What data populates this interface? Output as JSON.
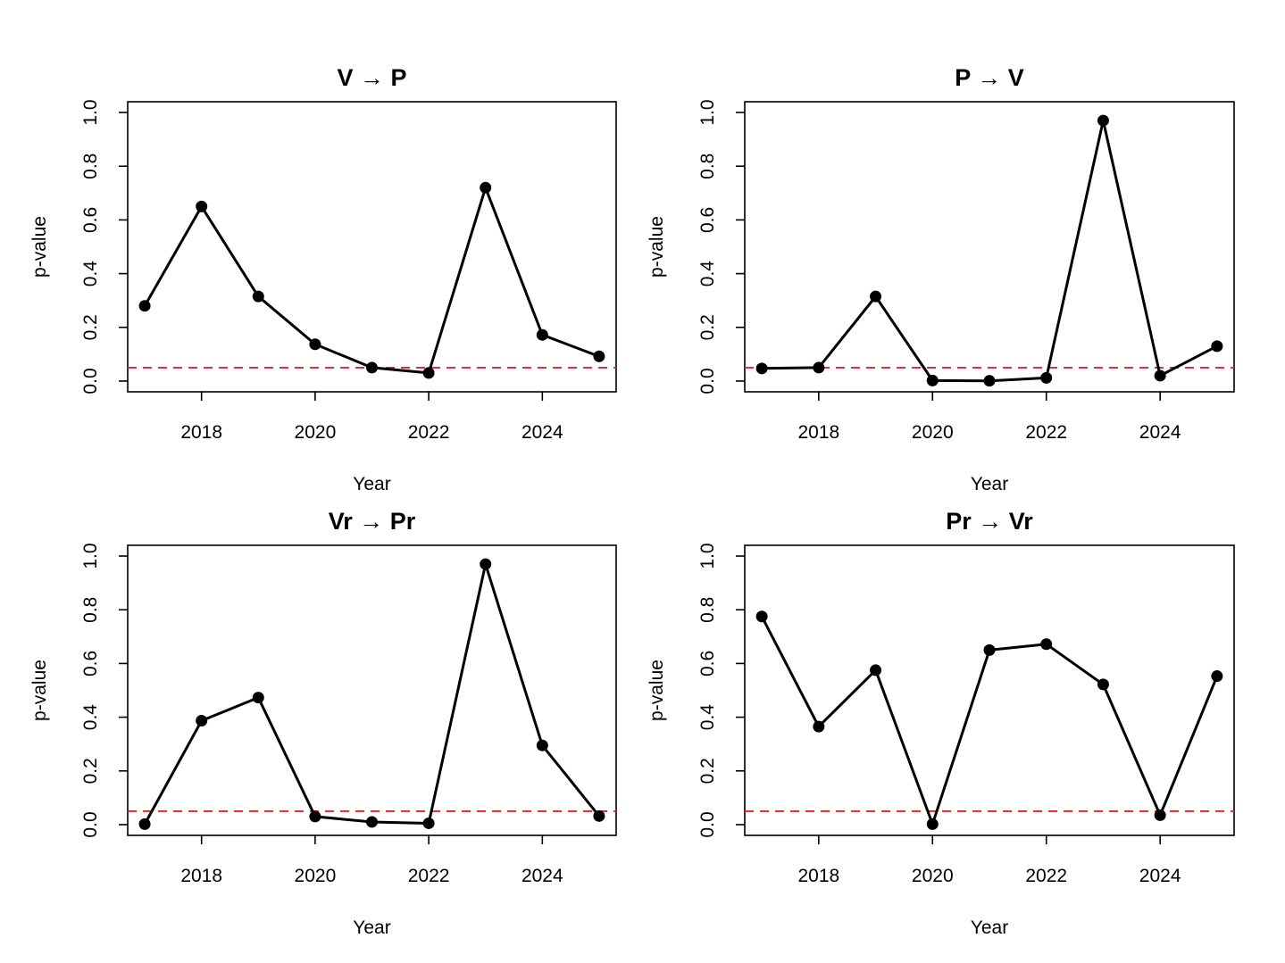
{
  "chart_data": [
    {
      "type": "line",
      "title": "V → P",
      "xlabel": "Year",
      "ylabel": "p-value",
      "x": [
        2017,
        2018,
        2019,
        2020,
        2021,
        2022,
        2023,
        2024,
        2025
      ],
      "values": [
        0.28,
        0.65,
        0.315,
        0.137,
        0.05,
        0.03,
        0.72,
        0.172,
        0.092
      ],
      "xticks": [
        "2018",
        "2020",
        "2022",
        "2024"
      ],
      "yticks": [
        "0.0",
        "0.2",
        "0.4",
        "0.6",
        "0.8",
        "1.0"
      ],
      "xlim": [
        2016.7,
        2025.3
      ],
      "ylim": [
        -0.04,
        1.04
      ],
      "reference_line": {
        "y": 0.05,
        "color": "#e8202a",
        "style": "dashed"
      },
      "grid": false
    },
    {
      "type": "line",
      "title": "P → V",
      "xlabel": "Year",
      "ylabel": "p-value",
      "x": [
        2017,
        2018,
        2019,
        2020,
        2021,
        2022,
        2023,
        2024,
        2025
      ],
      "values": [
        0.047,
        0.05,
        0.315,
        0.002,
        0.001,
        0.012,
        0.97,
        0.02,
        0.13
      ],
      "xticks": [
        "2018",
        "2020",
        "2022",
        "2024"
      ],
      "yticks": [
        "0.0",
        "0.2",
        "0.4",
        "0.6",
        "0.8",
        "1.0"
      ],
      "xlim": [
        2016.7,
        2025.3
      ],
      "ylim": [
        -0.04,
        1.04
      ],
      "reference_line": {
        "y": 0.05,
        "color": "#e8202a",
        "style": "dashed"
      },
      "grid": false
    },
    {
      "type": "line",
      "title": "Vr → Pr",
      "xlabel": "Year",
      "ylabel": "p-value",
      "x": [
        2017,
        2018,
        2019,
        2020,
        2021,
        2022,
        2023,
        2024,
        2025
      ],
      "values": [
        0.002,
        0.387,
        0.473,
        0.03,
        0.01,
        0.005,
        0.97,
        0.295,
        0.032
      ],
      "xticks": [
        "2018",
        "2020",
        "2022",
        "2024"
      ],
      "yticks": [
        "0.0",
        "0.2",
        "0.4",
        "0.6",
        "0.8",
        "1.0"
      ],
      "xlim": [
        2016.7,
        2025.3
      ],
      "ylim": [
        -0.04,
        1.04
      ],
      "reference_line": {
        "y": 0.05,
        "color": "#e8202a",
        "style": "dashed"
      },
      "grid": false
    },
    {
      "type": "line",
      "title": "Pr → Vr",
      "xlabel": "Year",
      "ylabel": "p-value",
      "x": [
        2017,
        2018,
        2019,
        2020,
        2021,
        2022,
        2023,
        2024,
        2025
      ],
      "values": [
        0.775,
        0.365,
        0.575,
        0.002,
        0.65,
        0.672,
        0.522,
        0.035,
        0.553
      ],
      "xticks": [
        "2018",
        "2020",
        "2022",
        "2024"
      ],
      "yticks": [
        "0.0",
        "0.2",
        "0.4",
        "0.6",
        "0.8",
        "1.0"
      ],
      "xlim": [
        2016.7,
        2025.3
      ],
      "ylim": [
        -0.04,
        1.04
      ],
      "reference_line": {
        "y": 0.05,
        "color": "#e8202a",
        "style": "dashed"
      },
      "grid": false
    }
  ]
}
